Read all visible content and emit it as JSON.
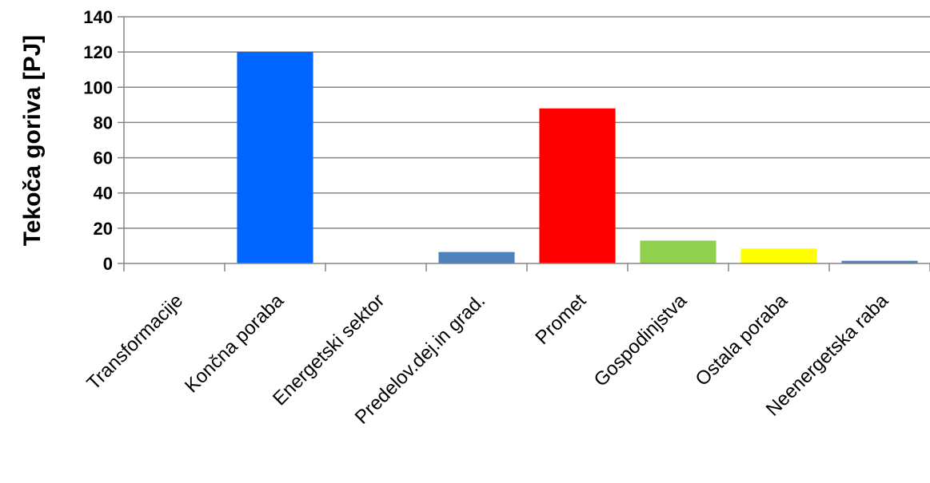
{
  "chart_data": {
    "type": "bar",
    "title": "",
    "xlabel": "",
    "ylabel": "Tekoča goriva [PJ]",
    "ylim": [
      0,
      140
    ],
    "yticks": [
      0,
      20,
      40,
      60,
      80,
      100,
      120,
      140
    ],
    "grid": true,
    "legend": "none",
    "categories": [
      "Transformacije",
      "Končna poraba",
      "Energetski sektor",
      "Predelov.dej.in grad.",
      "Promet",
      "Gospodinjstva",
      "Ostala poraba",
      "Neenergetska raba"
    ],
    "values": [
      0,
      120,
      0,
      6.5,
      88,
      13,
      8.5,
      1.5
    ],
    "colors": [
      "#4F81BD",
      "#0066FF",
      "#4F81BD",
      "#4F81BD",
      "#FF0000",
      "#92D050",
      "#FFFF00",
      "#4F81BD"
    ]
  }
}
